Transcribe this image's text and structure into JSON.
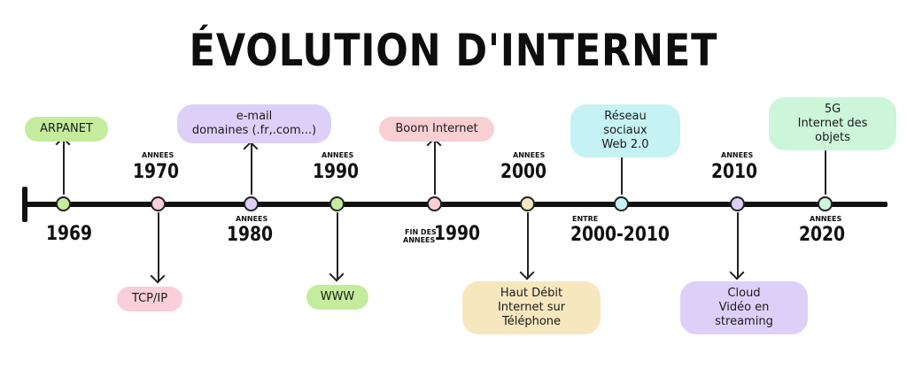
{
  "title": "ÉVOLUTION D'INTERNET",
  "colors": {
    "green": "#c4ec9c",
    "pink": "#f9cfdc",
    "lavender": "#ddd0f8",
    "yellow": "#f7e7bf",
    "cyan": "#c6f2f4",
    "mint": "#ccf5da",
    "rose": "#f8cfd2"
  },
  "labels": {
    "y1969": "1969",
    "annees_1970": "ANNEES",
    "y1970": "1970",
    "annees_1980": "ANNEES",
    "y1980": "1980",
    "annees_1990": "ANNEES",
    "y1990": "1990",
    "fin_des_1": "FIN DES",
    "fin_des_2": "ANNEES",
    "y1990_late": "1990",
    "annees_2000": "ANNEES",
    "y2000": "2000",
    "entre": "ENTRE",
    "y2000_2010": "2000-2010",
    "annees_2010": "ANNEES",
    "y2010": "2010",
    "annees_2020": "ANNEES",
    "y2020": "2020"
  },
  "events": {
    "arpanet": "ARPANET",
    "tcpip": "TCP/IP",
    "email_1": "e-mail",
    "email_2": "domaines (.fr,.com...)",
    "www": "WWW",
    "boom": "Boom Internet",
    "haut_1": "Haut Débit",
    "haut_2": "Internet sur Téléphone",
    "reseaux_1": "Réseau sociaux",
    "reseaux_2": "Web 2.0",
    "cloud_1": "Cloud",
    "cloud_2": "Vidéo en streaming",
    "fiveg_1": "5G",
    "fiveg_2": "Internet des objets"
  }
}
